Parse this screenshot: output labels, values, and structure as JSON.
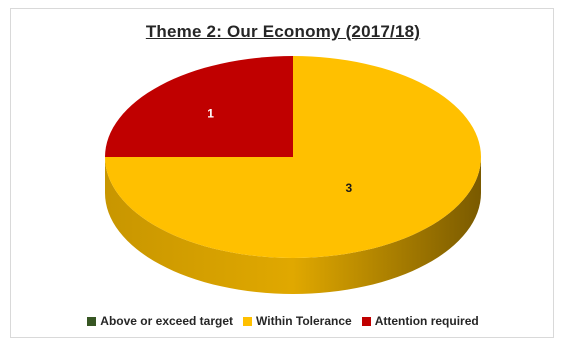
{
  "chart_data": {
    "type": "pie",
    "title": "Theme 2: Our Economy (2017/18)",
    "three_d": true,
    "legend_position": "bottom",
    "slices": [
      {
        "name": "Above or exceed target",
        "value": 0,
        "color": "#375623"
      },
      {
        "name": "Within Tolerance",
        "value": 3,
        "color": "#FFC000"
      },
      {
        "name": "Attention required",
        "value": 1,
        "color": "#C00000"
      }
    ]
  },
  "colors": {
    "within_side": "#B98A00",
    "attention_side": "#7A0000"
  }
}
